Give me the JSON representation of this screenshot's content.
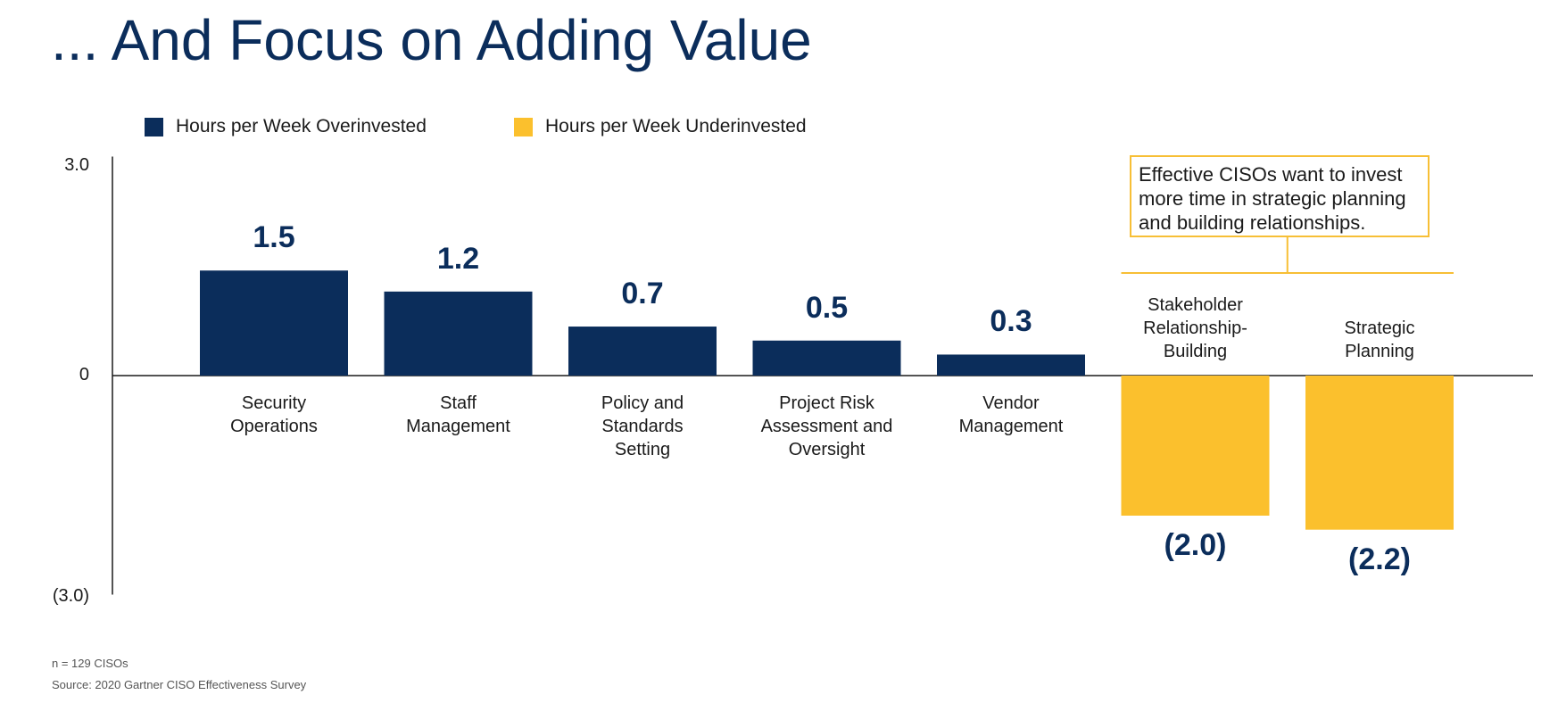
{
  "title": "... And Focus on Adding Value",
  "legend": {
    "over_label": "Hours per Week Overinvested",
    "under_label": "Hours per Week Underinvested"
  },
  "colors": {
    "over": "#0b2d5b",
    "under": "#fbc02d",
    "callout_border": "#f7bf36"
  },
  "callout": {
    "text": "Effective CISOs want to invest more time in strategic planning and building relationships."
  },
  "footnotes": {
    "n": "n = 129 CISOs",
    "source": "Source: 2020 Gartner CISO Effectiveness Survey"
  },
  "chart_data": {
    "type": "bar",
    "title": "",
    "xlabel": "",
    "ylabel": "",
    "ylim": [
      -3.0,
      3.0
    ],
    "y_ticks": [
      "3.0",
      "0",
      "(3.0)"
    ],
    "categories": [
      [
        "Security",
        "Operations"
      ],
      [
        "Staff",
        "Management"
      ],
      [
        "Policy and",
        "Standards",
        "Setting"
      ],
      [
        "Project Risk",
        "Assessment and",
        "Oversight"
      ],
      [
        "Vendor",
        "Management"
      ],
      [
        "Stakeholder",
        "Relationship-",
        "Building"
      ],
      [
        "Strategic",
        "Planning"
      ]
    ],
    "values": [
      1.5,
      1.2,
      0.7,
      0.5,
      0.3,
      -2.0,
      -2.2
    ],
    "value_labels": [
      "1.5",
      "1.2",
      "0.7",
      "0.5",
      "0.3",
      "(2.0)",
      "(2.2)"
    ],
    "series": [
      {
        "name": "Hours per Week Overinvested",
        "indices": [
          0,
          1,
          2,
          3,
          4
        ]
      },
      {
        "name": "Hours per Week Underinvested",
        "indices": [
          5,
          6
        ]
      }
    ],
    "grid": false,
    "legend_position": "top-left"
  }
}
